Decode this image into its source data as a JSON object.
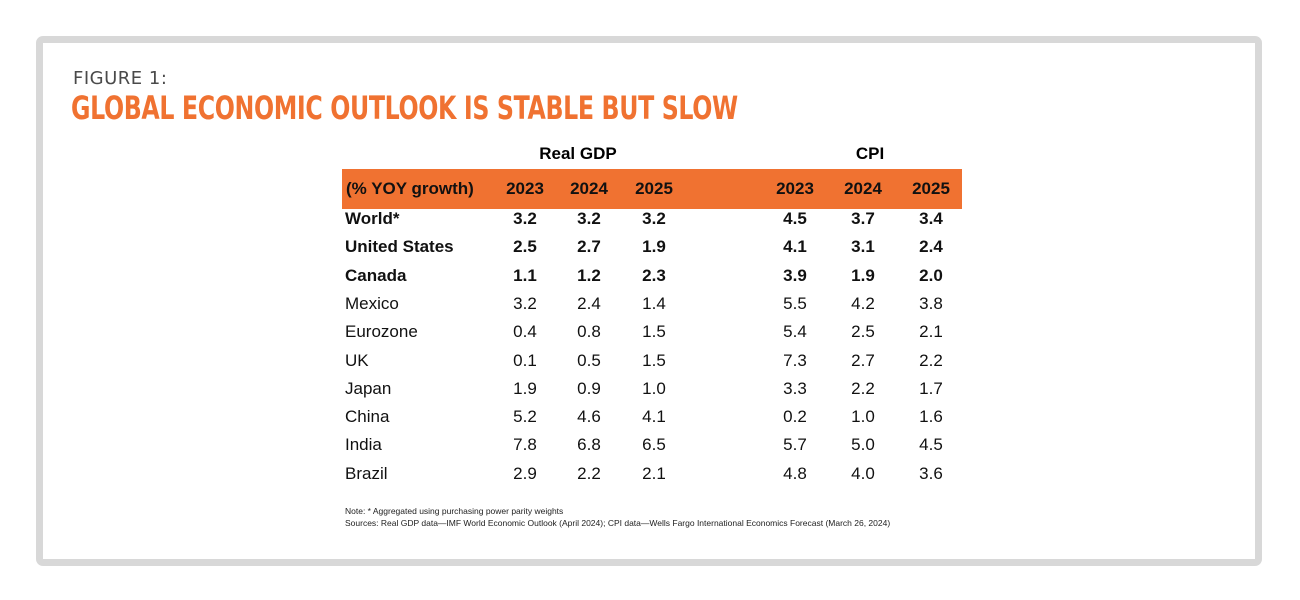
{
  "figure": {
    "label": "FIGURE 1:",
    "title": "GLOBAL ECONOMIC OUTLOOK IS STABLE BUT SLOW"
  },
  "colors": {
    "accent": "#f07231",
    "border": "#d8d8d8"
  },
  "chart_data": {
    "type": "table",
    "title": "GLOBAL ECONOMIC OUTLOOK IS STABLE BUT SLOW",
    "group_headers": [
      "Real GDP",
      "CPI"
    ],
    "row_header_label": "(% YOY growth)",
    "columns": {
      "gdp": [
        "2023",
        "2024",
        "2025"
      ],
      "cpi": [
        "2023",
        "2024",
        "2025"
      ]
    },
    "rows": [
      {
        "country": "World*",
        "bold": true,
        "gdp": [
          "3.2",
          "3.2",
          "3.2"
        ],
        "cpi": [
          "4.5",
          "3.7",
          "3.4"
        ]
      },
      {
        "country": "United States",
        "bold": true,
        "gdp": [
          "2.5",
          "2.7",
          "1.9"
        ],
        "cpi": [
          "4.1",
          "3.1",
          "2.4"
        ]
      },
      {
        "country": "Canada",
        "bold": true,
        "gdp": [
          "1.1",
          "1.2",
          "2.3"
        ],
        "cpi": [
          "3.9",
          "1.9",
          "2.0"
        ]
      },
      {
        "country": "Mexico",
        "bold": false,
        "gdp": [
          "3.2",
          "2.4",
          "1.4"
        ],
        "cpi": [
          "5.5",
          "4.2",
          "3.8"
        ]
      },
      {
        "country": "Eurozone",
        "bold": false,
        "gdp": [
          "0.4",
          "0.8",
          "1.5"
        ],
        "cpi": [
          "5.4",
          "2.5",
          "2.1"
        ]
      },
      {
        "country": "UK",
        "bold": false,
        "gdp": [
          "0.1",
          "0.5",
          "1.5"
        ],
        "cpi": [
          "7.3",
          "2.7",
          "2.2"
        ]
      },
      {
        "country": "Japan",
        "bold": false,
        "gdp": [
          "1.9",
          "0.9",
          "1.0"
        ],
        "cpi": [
          "3.3",
          "2.2",
          "1.7"
        ]
      },
      {
        "country": "China",
        "bold": false,
        "gdp": [
          "5.2",
          "4.6",
          "4.1"
        ],
        "cpi": [
          "0.2",
          "1.0",
          "1.6"
        ]
      },
      {
        "country": "India",
        "bold": false,
        "gdp": [
          "7.8",
          "6.8",
          "6.5"
        ],
        "cpi": [
          "5.7",
          "5.0",
          "4.5"
        ]
      },
      {
        "country": "Brazil",
        "bold": false,
        "gdp": [
          "2.9",
          "2.2",
          "2.1"
        ],
        "cpi": [
          "4.8",
          "4.0",
          "3.6"
        ]
      }
    ],
    "notes": [
      "Note: * Aggregated using purchasing power parity weights",
      "Sources: Real GDP data—IMF World Economic Outlook (April 2024); CPI data—Wells Fargo International Economics Forecast (March 26, 2024)"
    ]
  }
}
